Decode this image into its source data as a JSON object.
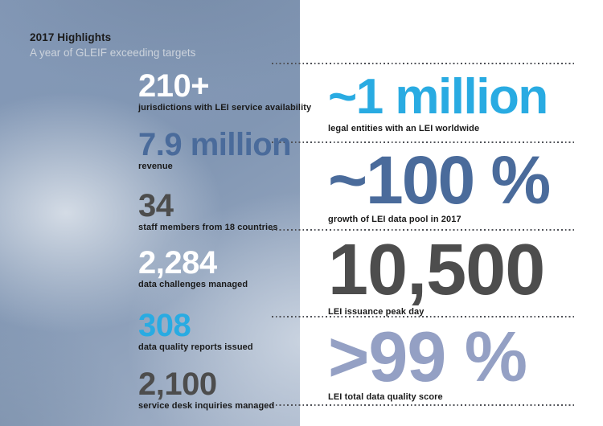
{
  "header": {
    "title": "2017 Highlights",
    "subtitle": "A year of GLEIF exceeding targets"
  },
  "chart_data": {
    "type": "table",
    "title": "2017 Highlights",
    "subtitle": "A year of GLEIF exceeding targets",
    "left": [
      {
        "value": "210+",
        "label": "jurisdictions with LEI service availability",
        "color": "#ffffff"
      },
      {
        "value": "7.9 million",
        "label": "revenue",
        "color": "#4a6b9b"
      },
      {
        "value": "34",
        "label": "staff members from 18 countries",
        "color": "#4d4d4d"
      },
      {
        "value": "2,284",
        "label": "data challenges managed",
        "color": "#ffffff"
      },
      {
        "value": "308",
        "label": "data quality reports issued",
        "color": "#29abe2"
      },
      {
        "value": "2,100",
        "label": "service desk inquiries managed",
        "color": "#4d4d4d"
      }
    ],
    "right": [
      {
        "value": "~1 million",
        "label": "legal entities with an LEI worldwide",
        "color": "#29abe2"
      },
      {
        "value": "~100 %",
        "label": "growth of LEI data pool in 2017",
        "color": "#4a6b9b"
      },
      {
        "value": "10,500",
        "label": "LEI issuance peak day",
        "color": "#4d4d4d"
      },
      {
        "value": ">99 %",
        "label": "LEI total data quality score",
        "color": "#94a0c4"
      }
    ]
  },
  "colors": {
    "accent_cyan": "#29abe2",
    "slate_blue": "#4a6b9b",
    "dark_gray": "#4d4d4d",
    "light_periwinkle": "#94a0c4",
    "white": "#ffffff",
    "label_dark": "#1a1a1a",
    "dotted_line": "#4f5157"
  }
}
